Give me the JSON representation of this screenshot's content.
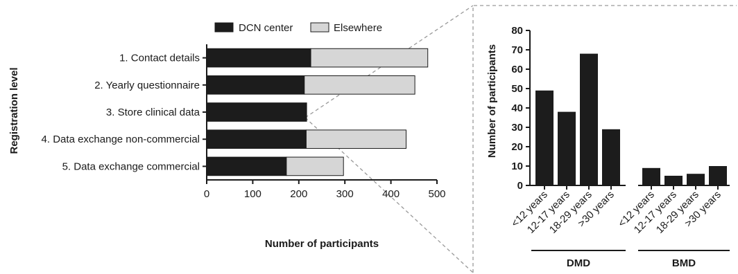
{
  "colors": {
    "dcn": "#1c1c1c",
    "elsewhere": "#d6d6d6",
    "axis": "#1a1a1a",
    "connector": "#9a9a9a",
    "bar": "#1c1c1c"
  },
  "chart_data": [
    {
      "type": "bar",
      "orientation": "horizontal",
      "stacked": true,
      "categories": [
        "1. Contact details",
        "2. Yearly questionnaire",
        "3. Store clinical data",
        "4. Data exchange non-commercial",
        "5. Data exchange commercial"
      ],
      "series": [
        {
          "name": "DCN center",
          "values": [
            226,
            212,
            217,
            216,
            173
          ]
        },
        {
          "name": "Elsewhere",
          "values": [
            254,
            240,
            0,
            217,
            124
          ]
        }
      ],
      "xlabel": "Number of participants",
      "ylabel": "Registration level",
      "xlim": [
        0,
        500
      ],
      "xticks": [
        "0",
        "100",
        "200",
        "300",
        "400",
        "500"
      ],
      "legend": "top",
      "grid": false
    },
    {
      "type": "bar",
      "categories": [
        "<12 years",
        "12-17 years",
        "18-29 years",
        ">30 years",
        "<12 years",
        "12-17 years",
        "18-29 years",
        ">30 years"
      ],
      "groups": [
        {
          "name": "DMD",
          "categories": [
            "<12 years",
            "12-17 years",
            "18-29 years",
            ">30 years"
          ]
        },
        {
          "name": "BMD",
          "categories": [
            "<12 years",
            "12-17 years",
            "18-29 years",
            ">30 years"
          ]
        }
      ],
      "values": [
        49,
        38,
        68,
        29,
        9,
        5,
        6,
        10
      ],
      "ylabel": "Number of participants",
      "ylim": [
        0,
        80
      ],
      "yticks": [
        "0",
        "10",
        "20",
        "30",
        "40",
        "50",
        "60",
        "70",
        "80"
      ],
      "grid": false
    }
  ]
}
